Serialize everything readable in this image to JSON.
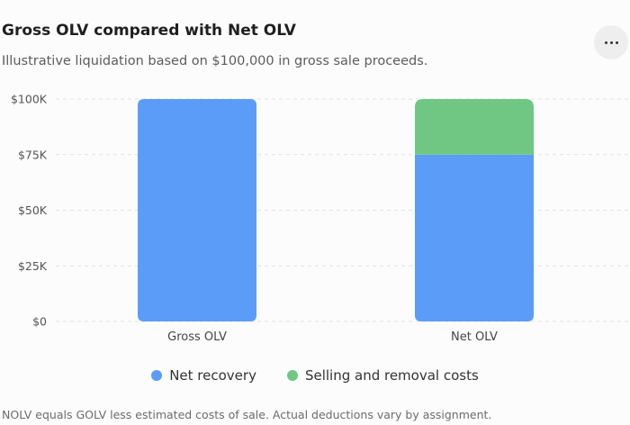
{
  "header": {
    "title": "Gross OLV compared with Net OLV",
    "subtitle": "Illustrative liquidation based on $100,000 in gross sale proceeds.",
    "more_icon": "more-horizontal-icon"
  },
  "chart_data": {
    "type": "bar",
    "stacked": true,
    "categories": [
      "Gross OLV",
      "Net OLV"
    ],
    "series": [
      {
        "name": "Net recovery",
        "values": [
          100000,
          75000
        ],
        "color": "#5b9cf8"
      },
      {
        "name": "Selling and removal costs",
        "values": [
          0,
          25000
        ],
        "color": "#6fc783"
      }
    ],
    "ylim": [
      0,
      100000
    ],
    "yticks": [
      0,
      25000,
      50000,
      75000,
      100000
    ],
    "ytick_labels": [
      "$0",
      "$25K",
      "$50K",
      "$75K",
      "$100K"
    ],
    "grid": true,
    "legend_position": "bottom"
  },
  "footnote": "NOLV equals GOLV less estimated costs of sale. Actual deductions vary by assignment."
}
